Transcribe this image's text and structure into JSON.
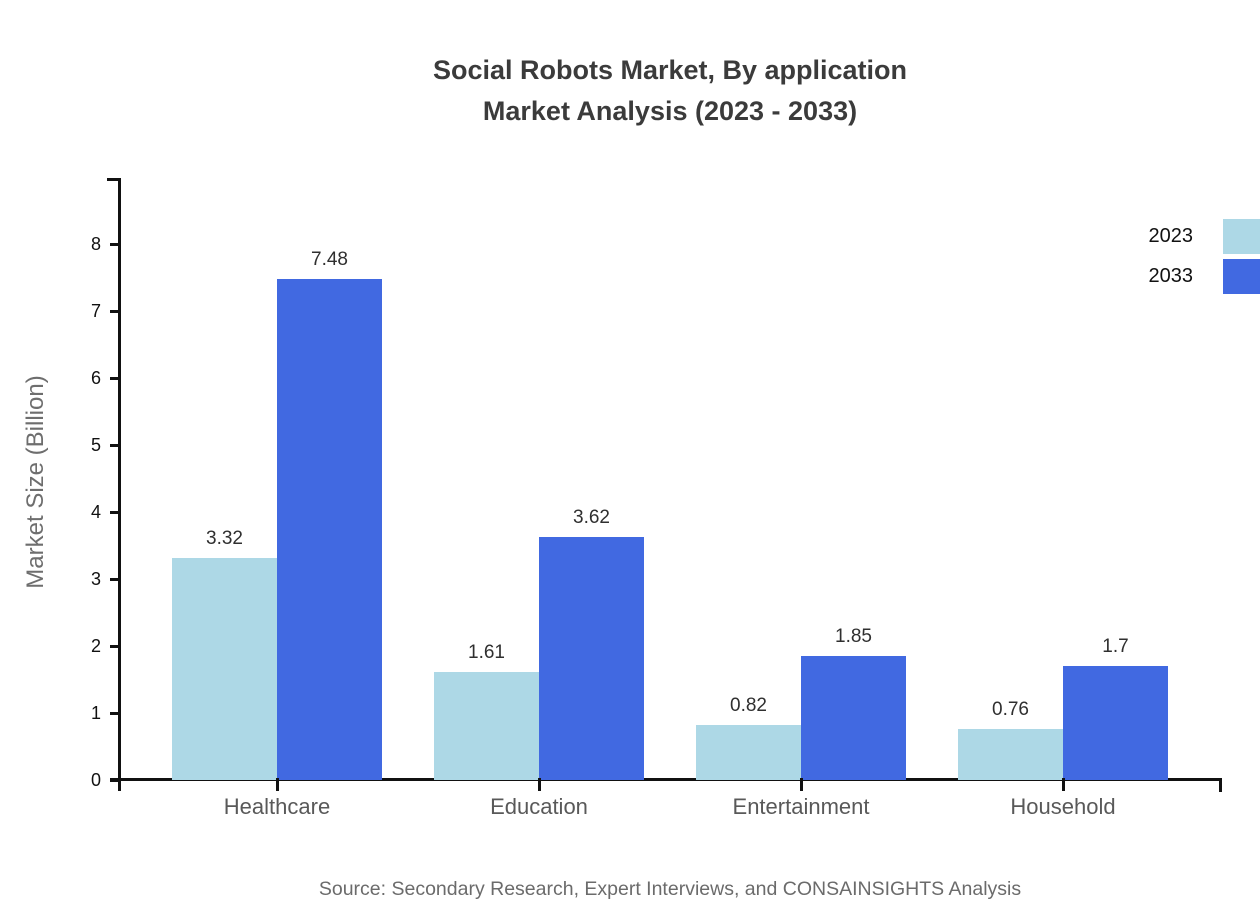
{
  "chart_data": {
    "type": "bar",
    "title_line1": "Social Robots Market, By application",
    "title_line2": "Market Analysis (2023 - 2033)",
    "ylabel": "Market Size (Billion)",
    "xlabel": "",
    "categories": [
      "Healthcare",
      "Education",
      "Entertainment",
      "Household"
    ],
    "series": [
      {
        "name": "2023",
        "color": "#ADD8E6",
        "values": [
          3.32,
          1.61,
          0.82,
          0.76
        ]
      },
      {
        "name": "2033",
        "color": "#4169E1",
        "values": [
          7.48,
          3.62,
          1.85,
          1.7
        ]
      }
    ],
    "y_ticks": [
      0,
      1,
      2,
      3,
      4,
      5,
      6,
      7,
      8
    ],
    "ylim": [
      0,
      9
    ],
    "grid": false,
    "legend_position": "top-right",
    "value_labels_shown": true,
    "source": "Source: Secondary Research, Expert Interviews, and CONSAINSIGHTS Analysis"
  },
  "colors": {
    "series_2023": "#ADD8E6",
    "series_2033": "#4169E1",
    "axis": "#111111",
    "title_text": "#3b3b3b",
    "category_text": "#595959",
    "muted_text": "#6b6b6b",
    "background": "#ffffff"
  }
}
